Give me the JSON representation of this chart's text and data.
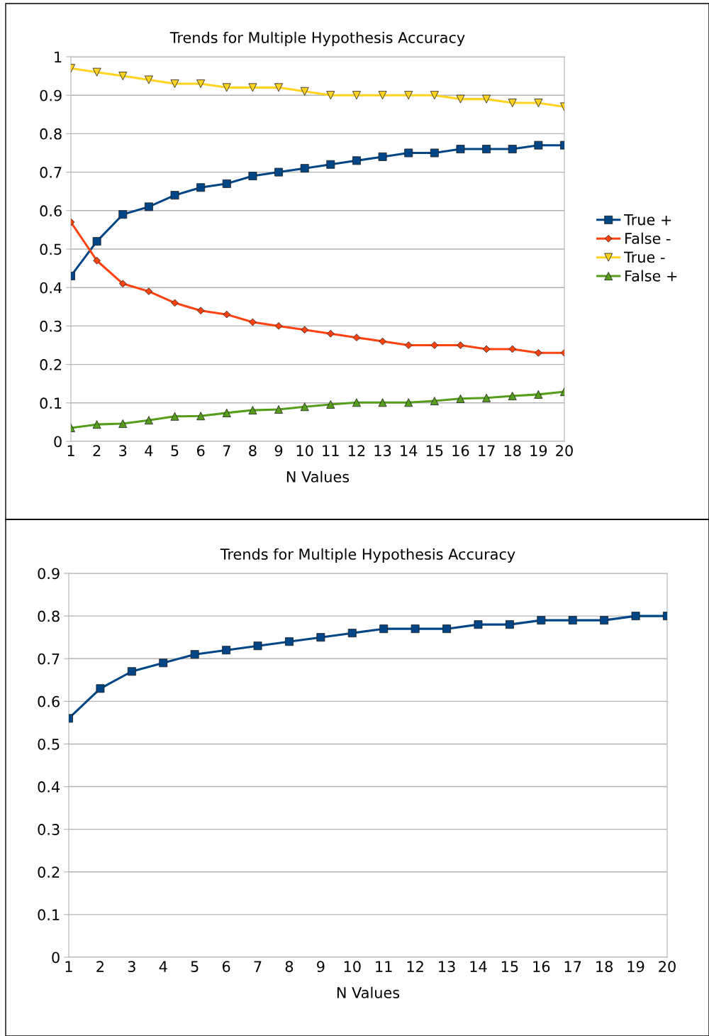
{
  "chart_data": [
    {
      "type": "line",
      "title": "Trends for Multiple Hypothesis Accuracy",
      "xlabel": "N Values",
      "categories": [
        "1",
        "2",
        "3",
        "4",
        "5",
        "6",
        "7",
        "8",
        "9",
        "10",
        "11",
        "12",
        "13",
        "14",
        "15",
        "16",
        "17",
        "18",
        "19",
        "20"
      ],
      "ylim": [
        0,
        1
      ],
      "yticks": [
        0,
        0.1,
        0.2,
        0.3,
        0.4,
        0.5,
        0.6,
        0.7,
        0.8,
        0.9,
        1
      ],
      "grid": "y",
      "legend": "right",
      "series": [
        {
          "name": "True +",
          "color": "#004586",
          "marker": "square",
          "values": [
            0.43,
            0.52,
            0.59,
            0.61,
            0.64,
            0.66,
            0.67,
            0.69,
            0.7,
            0.71,
            0.72,
            0.73,
            0.74,
            0.75,
            0.75,
            0.76,
            0.76,
            0.76,
            0.77,
            0.77
          ]
        },
        {
          "name": "False -",
          "color": "#ff420e",
          "marker": "diamond",
          "values": [
            0.57,
            0.47,
            0.41,
            0.39,
            0.36,
            0.34,
            0.33,
            0.31,
            0.3,
            0.29,
            0.28,
            0.27,
            0.26,
            0.25,
            0.25,
            0.25,
            0.24,
            0.24,
            0.23,
            0.23
          ]
        },
        {
          "name": "True -",
          "color": "#ffd320",
          "marker": "triangle_down",
          "values": [
            0.97,
            0.96,
            0.95,
            0.94,
            0.93,
            0.93,
            0.92,
            0.92,
            0.92,
            0.91,
            0.9,
            0.9,
            0.9,
            0.9,
            0.9,
            0.89,
            0.89,
            0.88,
            0.88,
            0.87
          ]
        },
        {
          "name": "False +",
          "color": "#579d1c",
          "marker": "triangle",
          "values": [
            0.035,
            0.044,
            0.046,
            0.055,
            0.065,
            0.066,
            0.074,
            0.081,
            0.083,
            0.09,
            0.096,
            0.101,
            0.101,
            0.101,
            0.105,
            0.111,
            0.113,
            0.118,
            0.122,
            0.129
          ]
        }
      ]
    },
    {
      "type": "line",
      "title": "Trends for Multiple Hypothesis Accuracy",
      "xlabel": "N Values",
      "categories": [
        "1",
        "2",
        "3",
        "4",
        "5",
        "6",
        "7",
        "8",
        "9",
        "10",
        "11",
        "12",
        "13",
        "14",
        "15",
        "16",
        "17",
        "18",
        "19",
        "20"
      ],
      "ylim": [
        0,
        0.9
      ],
      "yticks": [
        0,
        0.1,
        0.2,
        0.3,
        0.4,
        0.5,
        0.6,
        0.7,
        0.8,
        0.9
      ],
      "grid": "y",
      "series": [
        {
          "color": "#004586",
          "marker": "square",
          "values": [
            0.56,
            0.63,
            0.67,
            0.69,
            0.71,
            0.72,
            0.73,
            0.74,
            0.75,
            0.76,
            0.77,
            0.77,
            0.77,
            0.78,
            0.78,
            0.79,
            0.79,
            0.79,
            0.8,
            0.8
          ]
        }
      ]
    }
  ]
}
